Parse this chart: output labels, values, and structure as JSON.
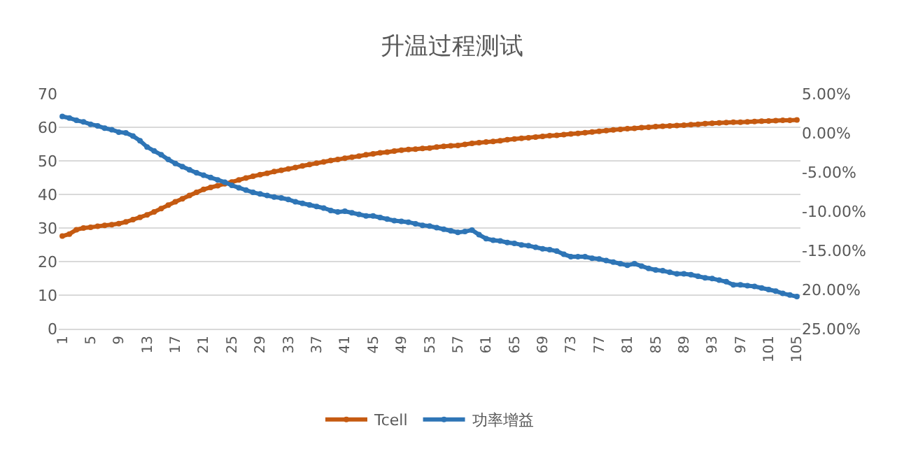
{
  "chart_data": {
    "type": "line",
    "title": "升温过程测试",
    "categories": [
      "1",
      null,
      null,
      null,
      "5",
      null,
      null,
      null,
      "9",
      null,
      null,
      null,
      "13",
      null,
      null,
      null,
      "17",
      null,
      null,
      null,
      "21",
      null,
      null,
      null,
      "25",
      null,
      null,
      null,
      "29",
      null,
      null,
      null,
      "33",
      null,
      null,
      null,
      "37",
      null,
      null,
      null,
      "41",
      null,
      null,
      null,
      "45",
      null,
      null,
      null,
      "49",
      null,
      null,
      null,
      "53",
      null,
      null,
      null,
      "57",
      null,
      null,
      null,
      "61",
      null,
      null,
      null,
      "65",
      null,
      null,
      null,
      "69",
      null,
      null,
      null,
      "73",
      null,
      null,
      null,
      "77",
      null,
      null,
      null,
      "81",
      null,
      null,
      null,
      "85",
      null,
      null,
      null,
      "89",
      null,
      null,
      null,
      "93",
      null,
      null,
      null,
      "97",
      null,
      null,
      null,
      "101",
      null,
      null,
      null,
      "105"
    ],
    "series": [
      {
        "name": "Tcell",
        "color": "#c55a11",
        "values": [
          27.6,
          28.2,
          29.5,
          30.0,
          30.2,
          30.5,
          30.8,
          31.0,
          31.3,
          31.8,
          32.5,
          33.2,
          33.9,
          34.8,
          35.8,
          36.8,
          37.8,
          38.7,
          39.7,
          40.6,
          41.5,
          42.1,
          42.6,
          43.2,
          43.7,
          44.3,
          44.9,
          45.4,
          45.9,
          46.3,
          46.8,
          47.2,
          47.6,
          48.0,
          48.5,
          48.9,
          49.3,
          49.7,
          50.1,
          50.4,
          50.8,
          51.1,
          51.4,
          51.8,
          52.1,
          52.4,
          52.6,
          52.9,
          53.2,
          53.4,
          53.5,
          53.7,
          53.8,
          54.1,
          54.3,
          54.5,
          54.6,
          54.9,
          55.2,
          55.4,
          55.6,
          55.8,
          56.0,
          56.3,
          56.5,
          56.7,
          56.9,
          57.1,
          57.3,
          57.5,
          57.6,
          57.8,
          58.0,
          58.2,
          58.4,
          58.6,
          58.8,
          59.0,
          59.2,
          59.4,
          59.6,
          59.7,
          59.9,
          60.0,
          60.2,
          60.3,
          60.4,
          60.5,
          60.6,
          60.8,
          60.9,
          61.1,
          61.2,
          61.3,
          61.4,
          61.5,
          61.5,
          61.6,
          61.7,
          61.8,
          61.9,
          62.0,
          62.1,
          62.1,
          62.2
        ]
      },
      {
        "name": "功率增益",
        "color": "#2e75b6",
        "axis": "y2",
        "values": [
          2.1,
          1.9,
          1.6,
          1.4,
          1.1,
          0.9,
          0.6,
          0.4,
          0.1,
          0.0,
          -0.4,
          -1.0,
          -1.8,
          -2.3,
          -2.8,
          -3.4,
          -3.9,
          -4.3,
          -4.7,
          -5.1,
          -5.4,
          -5.7,
          -6.0,
          -6.3,
          -6.7,
          -7.0,
          -7.3,
          -7.6,
          -7.8,
          -8.0,
          -8.2,
          -8.3,
          -8.5,
          -8.8,
          -9.0,
          -9.2,
          -9.4,
          -9.6,
          -9.9,
          -10.1,
          -10.0,
          -10.2,
          -10.4,
          -10.6,
          -10.6,
          -10.8,
          -11.0,
          -11.2,
          -11.3,
          -11.4,
          -11.6,
          -11.8,
          -11.9,
          -12.1,
          -12.3,
          -12.5,
          -12.7,
          -12.6,
          -12.4,
          -13.0,
          -13.5,
          -13.7,
          -13.8,
          -14.0,
          -14.1,
          -14.3,
          -14.4,
          -14.6,
          -14.8,
          -14.9,
          -15.1,
          -15.5,
          -15.8,
          -15.8,
          -15.8,
          -16.0,
          -16.1,
          -16.3,
          -16.5,
          -16.7,
          -16.9,
          -16.7,
          -17.0,
          -17.3,
          -17.5,
          -17.6,
          -17.8,
          -18.0,
          -18.0,
          -18.1,
          -18.3,
          -18.5,
          -18.6,
          -18.8,
          -19.0,
          -19.4,
          -19.4,
          -19.5,
          -19.6,
          -19.8,
          -20.0,
          -20.2,
          -20.5,
          -20.7,
          -20.9
        ]
      }
    ],
    "ylim": [
      0,
      70
    ],
    "yticks": [
      0,
      10,
      20,
      30,
      40,
      50,
      60,
      70
    ],
    "y2lim": [
      -25,
      5
    ],
    "y2ticks": [
      {
        "value": 5,
        "label": "5.00%"
      },
      {
        "value": 0,
        "label": "0.00%"
      },
      {
        "value": -5,
        "label": "-5.00%"
      },
      {
        "value": -10,
        "label": "-10.00%"
      },
      {
        "value": -15,
        "label": "-15.00%"
      },
      {
        "value": -20,
        "label": "20.00%"
      },
      {
        "value": -25,
        "label": "25.00%"
      }
    ],
    "grid": "y",
    "legend": "bottom",
    "marker": "circle",
    "line_style": "solid"
  }
}
